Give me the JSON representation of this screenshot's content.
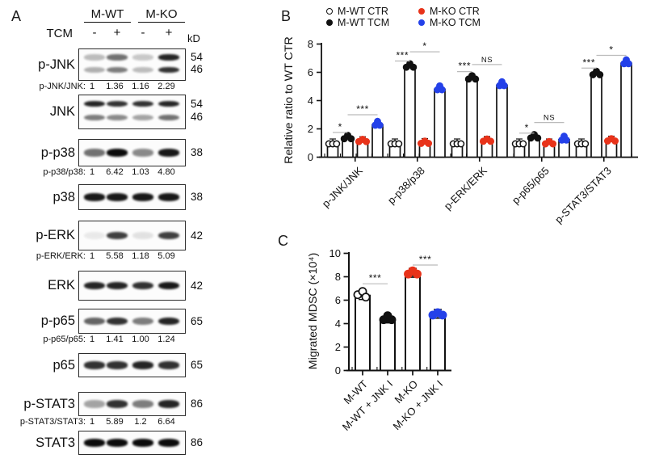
{
  "colors": {
    "red": "#e8331a",
    "blue": "#2441e9",
    "black": "#111111",
    "open_fill": "#ffffff",
    "bar_fill": "#ffffff",
    "bar_stroke": "#111111",
    "sig_line": "#bbbbbb"
  },
  "panel_a": {
    "label": "A",
    "group_headers": [
      "M-WT",
      "M-KO"
    ],
    "tcm_label": "TCM",
    "lane_signs": [
      "-",
      "+",
      "-",
      "+"
    ],
    "kd_header": "kD",
    "blots": [
      {
        "name": "p-JNK",
        "kd": [
          "54",
          "46"
        ],
        "bands": [
          [
            0.25,
            0.55,
            0.2,
            0.85
          ],
          [
            0.3,
            0.5,
            0.25,
            0.8
          ]
        ],
        "ratio_label": "p-JNK/JNK:",
        "ratio_values": [
          "1",
          "1.36",
          "1.16",
          "2.29"
        ]
      },
      {
        "name": "JNK",
        "kd": [
          "54",
          "46"
        ],
        "bands": [
          [
            0.85,
            0.8,
            0.8,
            0.85
          ],
          [
            0.5,
            0.45,
            0.35,
            0.55
          ]
        ]
      },
      {
        "name": "p-p38",
        "kd": [
          "38"
        ],
        "bands": [
          [
            0.55,
            0.95,
            0.45,
            0.9
          ]
        ],
        "ratio_label": "p-p38/p38:",
        "ratio_values": [
          "1",
          "6.42",
          "1.03",
          "4.80"
        ]
      },
      {
        "name": "p38",
        "kd": [
          "38"
        ],
        "bands": [
          [
            0.9,
            0.9,
            0.9,
            0.9
          ]
        ]
      },
      {
        "name": "p-ERK",
        "kd": [
          "42"
        ],
        "bands": [
          [
            0.07,
            0.75,
            0.1,
            0.75
          ]
        ],
        "ratio_label": "p-ERK/ERK:",
        "ratio_values": [
          "1",
          "5.58",
          "1.18",
          "5.09"
        ]
      },
      {
        "name": "ERK",
        "kd": [
          "42"
        ],
        "bands": [
          [
            0.85,
            0.85,
            0.8,
            0.9
          ]
        ]
      },
      {
        "name": "p-p65",
        "kd": [
          "65"
        ],
        "bands": [
          [
            0.6,
            0.8,
            0.5,
            0.85
          ]
        ],
        "ratio_label": "p-p65/p65:",
        "ratio_values": [
          "1",
          "1.41",
          "1.00",
          "1.24"
        ]
      },
      {
        "name": "p65",
        "kd": [
          "65"
        ],
        "bands": [
          [
            0.8,
            0.8,
            0.85,
            0.8
          ]
        ]
      },
      {
        "name": "p-STAT3",
        "kd": [
          "86"
        ],
        "bands": [
          [
            0.35,
            0.8,
            0.5,
            0.85
          ]
        ],
        "ratio_label": "p-STAT3/STAT3:",
        "ratio_values": [
          "1",
          "5.89",
          "1.2",
          "6.64"
        ]
      },
      {
        "name": "STAT3",
        "kd": [
          "86"
        ],
        "bands": [
          [
            0.95,
            0.95,
            0.95,
            0.95
          ]
        ]
      }
    ]
  },
  "chart_data": [
    {
      "id": "panel_b",
      "panel_label": "B",
      "type": "bar",
      "title": "",
      "ylabel": "Relative ratio to WT CTR",
      "xlabel": "",
      "ylim": [
        0,
        8
      ],
      "yticks": [
        0,
        2,
        4,
        6,
        8
      ],
      "grid": false,
      "legend_position": "top",
      "legend": [
        {
          "label": "M-WT CTR",
          "marker": "open"
        },
        {
          "label": "M-KO CTR",
          "marker": "red"
        },
        {
          "label": "M-WT TCM",
          "marker": "black"
        },
        {
          "label": "M-KO TCM",
          "marker": "blue"
        }
      ],
      "categories": [
        "p-JNK/JNK",
        "p-p38/p38",
        "p-ERK/ERK",
        "p-p65/p65",
        "p-STAT3/STAT3"
      ],
      "series": [
        {
          "name": "M-WT CTR",
          "style": "open",
          "values": [
            1,
            1,
            1,
            1,
            1
          ]
        },
        {
          "name": "M-WT TCM",
          "style": "black",
          "values": [
            1.36,
            6.42,
            5.58,
            1.41,
            5.89
          ]
        },
        {
          "name": "M-KO CTR",
          "style": "red",
          "values": [
            1.16,
            1.03,
            1.18,
            1.0,
            1.2
          ]
        },
        {
          "name": "M-KO TCM",
          "style": "blue",
          "values": [
            2.29,
            4.8,
            5.09,
            1.24,
            6.64
          ]
        }
      ],
      "significance": [
        {
          "group": 0,
          "between": [
            0,
            1
          ],
          "label": "*",
          "height": 1.75
        },
        {
          "group": 0,
          "between": [
            1,
            3
          ],
          "label": "***",
          "height": 3.0
        },
        {
          "group": 1,
          "between": [
            0,
            1
          ],
          "label": "***",
          "height": 6.8
        },
        {
          "group": 1,
          "between": [
            1,
            3
          ],
          "label": "*",
          "height": 7.45
        },
        {
          "group": 2,
          "between": [
            0,
            1
          ],
          "label": "***",
          "height": 6.05
        },
        {
          "group": 2,
          "between": [
            1,
            3
          ],
          "label": "NS",
          "height": 6.55
        },
        {
          "group": 3,
          "between": [
            0,
            1
          ],
          "label": "*",
          "height": 1.7
        },
        {
          "group": 3,
          "between": [
            1,
            3
          ],
          "label": "NS",
          "height": 2.45
        },
        {
          "group": 4,
          "between": [
            0,
            1
          ],
          "label": "***",
          "height": 6.3
        },
        {
          "group": 4,
          "between": [
            1,
            3
          ],
          "label": "*",
          "height": 7.2
        }
      ]
    },
    {
      "id": "panel_c",
      "panel_label": "C",
      "type": "bar",
      "title": "",
      "ylabel": "Migrated MDSC (×10⁴)",
      "xlabel": "",
      "ylim": [
        0,
        10
      ],
      "yticks": [
        0,
        2,
        4,
        6,
        8,
        10
      ],
      "grid": false,
      "categories": [
        "M-WT",
        "M-WT + JNK I",
        "M-KO",
        "M-KO + JNK I"
      ],
      "values": [
        6.4,
        4.4,
        8.3,
        4.8
      ],
      "styles": [
        "open",
        "black",
        "red",
        "blue"
      ],
      "significance": [
        {
          "between": [
            0,
            1
          ],
          "label": "***",
          "height": 7.4
        },
        {
          "between": [
            2,
            3
          ],
          "label": "***",
          "height": 9.0
        }
      ]
    }
  ]
}
